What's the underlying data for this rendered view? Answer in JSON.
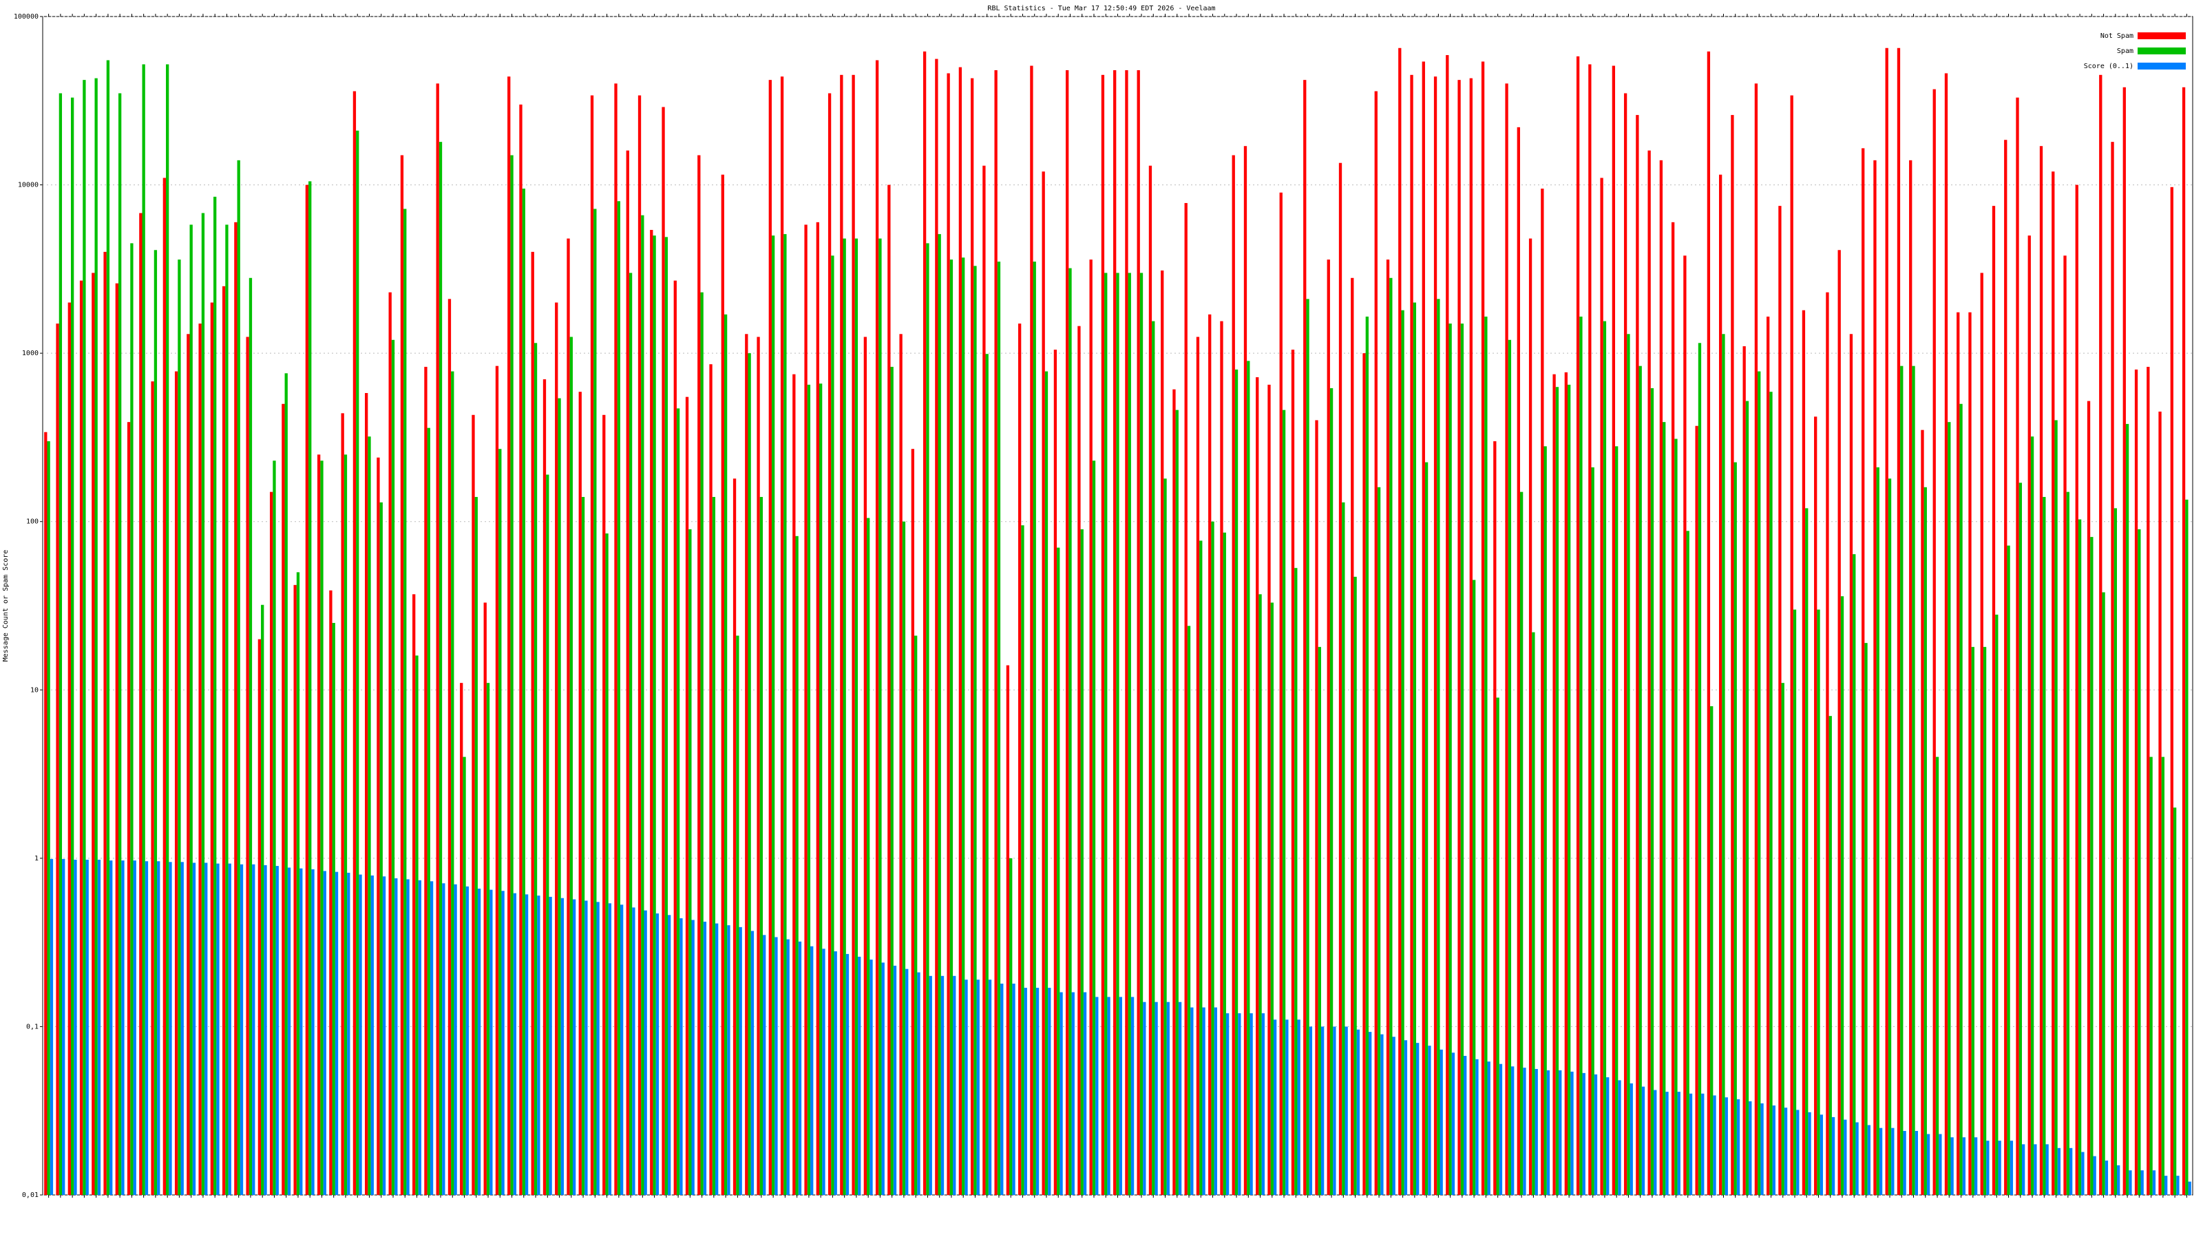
{
  "chart_data": {
    "type": "bar",
    "title": "RBL Statistics - Tue Mar 17 12:50:49 EDT 2026 - Veelaam",
    "y_label": "Message Count or Spam Score",
    "log_scale": true,
    "grid": true,
    "legend": "upper right",
    "ylim": [
      0.01,
      100000
    ],
    "yticks": [
      {
        "value": 0.01,
        "label": "0,01"
      },
      {
        "value": 0.1,
        "label": "0,1"
      },
      1,
      10,
      100,
      1000,
      10000,
      100000
    ],
    "series": [
      {
        "name": "Not Spam",
        "color": "#ff0000",
        "values": [
          340,
          1500,
          2000,
          2700,
          3000,
          4000,
          2600,
          390,
          6800,
          680,
          11000,
          780,
          1300,
          1500,
          2000,
          2500,
          6000,
          1250,
          20,
          150,
          500,
          42,
          10000,
          250,
          39,
          440,
          36000,
          580,
          240,
          2300,
          15000,
          37,
          830,
          40000,
          2100,
          11,
          430,
          33,
          840,
          44000,
          30000,
          4000,
          700,
          2000,
          4800,
          590,
          34000,
          430,
          40000,
          16000,
          34000,
          5400,
          29000,
          2700,
          550,
          15000,
          860,
          11500,
          180,
          1300,
          1250,
          42000,
          44000,
          750,
          5800,
          6000,
          35000,
          45000,
          45000,
          1250,
          55000,
          10000,
          1300,
          270,
          62000,
          56000,
          46000,
          50000,
          43000,
          13000,
          48000,
          14,
          1500,
          51000,
          12000,
          1050,
          48000,
          1450,
          3600,
          45000,
          48000,
          48000,
          48000,
          13000,
          3100,
          610,
          7800,
          1250,
          1700,
          1550,
          15000,
          17000,
          720,
          650,
          9000,
          1050,
          42000,
          400,
          3600,
          13500,
          2800,
          1000,
          36000,
          3600,
          65000,
          45000,
          54000,
          44000,
          59000,
          42000,
          43000,
          54000,
          300,
          40000,
          22000,
          4800,
          9500,
          750,
          770,
          58000,
          52000,
          11000,
          51000,
          35000,
          26000,
          16000,
          14000,
          6000,
          3800,
          370,
          62000,
          11500,
          26000,
          1100,
          40000,
          1650,
          7500,
          34000,
          1800,
          420,
          2300,
          4100,
          1300,
          16500,
          14000,
          65000,
          65000,
          14000,
          350,
          37000,
          46000,
          1750,
          1750,
          3000,
          7500,
          18500,
          33000,
          5000,
          17000,
          12000,
          3800,
          10000,
          520,
          45000,
          18000,
          38000,
          800,
          830,
          450,
          9700,
          38000
        ]
      },
      {
        "name": "Spam",
        "color": "#00c000",
        "values": [
          300,
          35000,
          33000,
          42000,
          43000,
          55000,
          35000,
          4500,
          52000,
          4100,
          52000,
          3600,
          5800,
          6800,
          8500,
          5800,
          14000,
          2800,
          32,
          230,
          760,
          50,
          10500,
          230,
          25,
          250,
          21000,
          320,
          130,
          1200,
          7200,
          16,
          360,
          18000,
          780,
          4,
          140,
          11,
          270,
          15000,
          9500,
          1150,
          190,
          540,
          1250,
          140,
          7200,
          85,
          8000,
          3000,
          6600,
          5000,
          4900,
          470,
          90,
          2300,
          140,
          1700,
          21,
          1000,
          140,
          5000,
          5100,
          82,
          650,
          660,
          3800,
          4800,
          4800,
          105,
          4800,
          830,
          100,
          21,
          4500,
          5100,
          3600,
          3700,
          3300,
          990,
          3500,
          1,
          95,
          3500,
          780,
          70,
          3200,
          90,
          230,
          3000,
          3000,
          3000,
          3000,
          1550,
          180,
          460,
          24,
          77,
          100,
          86,
          800,
          900,
          37,
          33,
          460,
          53,
          2100,
          18,
          620,
          130,
          47,
          1650,
          160,
          2800,
          1800,
          2000,
          225,
          2100,
          1500,
          1500,
          45,
          1650,
          9,
          1200,
          150,
          22,
          280,
          630,
          650,
          1650,
          210,
          1550,
          280,
          1300,
          840,
          620,
          390,
          310,
          88,
          1150,
          8,
          1300,
          225,
          520,
          780,
          590,
          11,
          30,
          120,
          30,
          7,
          36,
          64,
          19,
          210,
          180,
          840,
          840,
          160,
          4,
          390,
          500,
          18,
          18,
          28,
          72,
          170,
          320,
          140,
          400,
          150,
          103,
          81,
          38,
          120,
          380,
          90,
          4,
          4,
          2,
          135
        ]
      },
      {
        "name": "Score (0..1)",
        "color": "#0080ff",
        "values": [
          0.99,
          0.99,
          0.98,
          0.98,
          0.98,
          0.97,
          0.97,
          0.97,
          0.96,
          0.96,
          0.95,
          0.95,
          0.94,
          0.94,
          0.93,
          0.93,
          0.92,
          0.92,
          0.91,
          0.9,
          0.88,
          0.87,
          0.86,
          0.84,
          0.83,
          0.82,
          0.8,
          0.79,
          0.78,
          0.76,
          0.75,
          0.74,
          0.73,
          0.71,
          0.7,
          0.68,
          0.66,
          0.65,
          0.64,
          0.62,
          0.61,
          0.6,
          0.59,
          0.58,
          0.57,
          0.56,
          0.55,
          0.54,
          0.53,
          0.51,
          0.49,
          0.47,
          0.46,
          0.44,
          0.43,
          0.42,
          0.41,
          0.4,
          0.39,
          0.37,
          0.35,
          0.34,
          0.33,
          0.32,
          0.3,
          0.29,
          0.28,
          0.27,
          0.26,
          0.25,
          0.24,
          0.23,
          0.22,
          0.21,
          0.2,
          0.2,
          0.2,
          0.19,
          0.19,
          0.19,
          0.18,
          0.18,
          0.17,
          0.17,
          0.17,
          0.16,
          0.16,
          0.16,
          0.15,
          0.15,
          0.15,
          0.15,
          0.14,
          0.14,
          0.14,
          0.14,
          0.13,
          0.13,
          0.13,
          0.12,
          0.12,
          0.12,
          0.12,
          0.11,
          0.11,
          0.11,
          0.1,
          0.1,
          0.1,
          0.1,
          0.096,
          0.093,
          0.09,
          0.087,
          0.083,
          0.08,
          0.077,
          0.073,
          0.07,
          0.067,
          0.064,
          0.062,
          0.06,
          0.058,
          0.057,
          0.056,
          0.055,
          0.055,
          0.054,
          0.053,
          0.052,
          0.05,
          0.048,
          0.046,
          0.044,
          0.042,
          0.041,
          0.041,
          0.04,
          0.04,
          0.039,
          0.038,
          0.037,
          0.036,
          0.035,
          0.034,
          0.033,
          0.032,
          0.031,
          0.03,
          0.029,
          0.028,
          0.027,
          0.026,
          0.025,
          0.025,
          0.024,
          0.024,
          0.023,
          0.023,
          0.022,
          0.022,
          0.022,
          0.021,
          0.021,
          0.021,
          0.02,
          0.02,
          0.02,
          0.019,
          0.019,
          0.018,
          0.017,
          0.016,
          0.015,
          0.014,
          0.014,
          0.014,
          0.013,
          0.013,
          0.012
        ]
      }
    ]
  }
}
